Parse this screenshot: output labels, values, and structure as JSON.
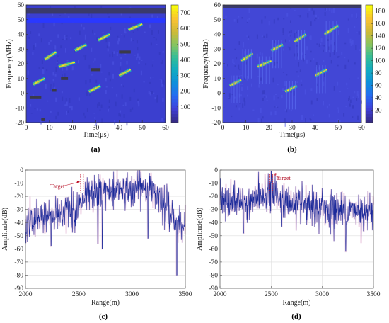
{
  "chart_data": [
    {
      "id": "a",
      "type": "heatmap",
      "panel_label": "(a)",
      "xlabel": "Time(μs)",
      "ylabel": "Frequency(MHz)",
      "xlim": [
        0,
        60
      ],
      "ylim": [
        -20,
        60
      ],
      "xticks": [
        "0",
        "10",
        "20",
        "30",
        "40",
        "50",
        "60"
      ],
      "yticks": [
        "-20",
        "-10",
        "0",
        "10",
        "20",
        "30",
        "40",
        "50",
        "60"
      ],
      "colorbar": {
        "min": 0,
        "max": 750,
        "ticks": [
          "100",
          "200",
          "300",
          "400",
          "500",
          "600",
          "700"
        ],
        "colormap": "parula"
      },
      "background_color": "#3b3fcf",
      "bands": [
        {
          "f_min": 54,
          "f_max": 58,
          "color": "#3a3a6a"
        },
        {
          "f_min": 48,
          "f_max": 51,
          "color": "#2a38ff"
        }
      ],
      "chirps": [
        {
          "t_start": 3,
          "t_end": 8,
          "f_start": 6,
          "f_end": 10
        },
        {
          "t_start": 8,
          "t_end": 13,
          "f_start": 23,
          "f_end": 28
        },
        {
          "t_start": 14,
          "t_end": 21,
          "f_start": 18,
          "f_end": 21
        },
        {
          "t_start": 21,
          "t_end": 26,
          "f_start": 29,
          "f_end": 33
        },
        {
          "t_start": 27,
          "t_end": 32,
          "f_start": 1,
          "f_end": 5
        },
        {
          "t_start": 31,
          "t_end": 36,
          "f_start": 36,
          "f_end": 40
        },
        {
          "t_start": 40,
          "t_end": 45,
          "f_start": 12,
          "f_end": 16
        },
        {
          "t_start": 44,
          "t_end": 50,
          "f_start": 43,
          "f_end": 47
        }
      ],
      "jamming_blocks": [
        {
          "t_start": 1.5,
          "t_end": 6.5,
          "f_start": -4,
          "f_end": -2
        },
        {
          "t_start": 6.5,
          "t_end": 8,
          "f_start": -19,
          "f_end": -17
        },
        {
          "t_start": 11,
          "t_end": 13,
          "f_start": 1,
          "f_end": 3
        },
        {
          "t_start": 15,
          "t_end": 18,
          "f_start": 9,
          "f_end": 11
        },
        {
          "t_start": 28,
          "t_end": 32,
          "f_start": 15,
          "f_end": 17
        },
        {
          "t_start": 40,
          "t_end": 45,
          "f_start": 27,
          "f_end": 29
        }
      ]
    },
    {
      "id": "b",
      "type": "heatmap",
      "panel_label": "(b)",
      "xlabel": "Time(μs)",
      "ylabel": "Frequency(MHz)",
      "xlim": [
        0,
        60
      ],
      "ylim": [
        -20,
        60
      ],
      "xticks": [
        "0",
        "10",
        "20",
        "30",
        "40",
        "50",
        "60"
      ],
      "yticks": [
        "-20",
        "-10",
        "0",
        "10",
        "20",
        "30",
        "40",
        "50",
        "60"
      ],
      "colorbar": {
        "min": 0,
        "max": 190,
        "ticks": [
          "20",
          "40",
          "60",
          "80",
          "100",
          "120",
          "140",
          "160",
          "180"
        ],
        "colormap": "parula"
      },
      "background_color": "#4247d6",
      "bands": [
        {
          "f_min": 58,
          "f_max": 60,
          "color": "#3a3a6a"
        }
      ],
      "chirps": [
        {
          "t_start": 3,
          "t_end": 8,
          "f_start": 5,
          "f_end": 9
        },
        {
          "t_start": 8,
          "t_end": 13,
          "f_start": 22,
          "f_end": 27
        },
        {
          "t_start": 15,
          "t_end": 21,
          "f_start": 18,
          "f_end": 22
        },
        {
          "t_start": 21,
          "t_end": 26,
          "f_start": 29,
          "f_end": 33
        },
        {
          "t_start": 27,
          "t_end": 32,
          "f_start": 1,
          "f_end": 5
        },
        {
          "t_start": 31,
          "t_end": 36,
          "f_start": 35,
          "f_end": 40
        },
        {
          "t_start": 40,
          "t_end": 45,
          "f_start": 12,
          "f_end": 16
        },
        {
          "t_start": 44,
          "t_end": 50,
          "f_start": 40,
          "f_end": 46
        }
      ]
    },
    {
      "id": "c",
      "type": "line",
      "panel_label": "(c)",
      "xlabel": "Range(m)",
      "ylabel": "Amplitude(dB)",
      "xlim": [
        2000,
        3500
      ],
      "ylim": [
        -90,
        0
      ],
      "xticks": [
        "2000",
        "2500",
        "3000",
        "3500"
      ],
      "yticks": [
        "0",
        "-10",
        "-20",
        "-30",
        "-40",
        "-50",
        "-60",
        "-70",
        "-80",
        "-90"
      ],
      "grid": true,
      "line_color": "#1c2a9a",
      "envelope": {
        "x": [
          2000,
          2050,
          2100,
          2150,
          2200,
          2250,
          2300,
          2350,
          2400,
          2450,
          2500,
          2550,
          2600,
          2650,
          2700,
          2750,
          2800,
          2850,
          2900,
          2950,
          3000,
          3050,
          3100,
          3150,
          3200,
          3250,
          3300,
          3350,
          3400,
          3450,
          3500
        ],
        "y": [
          -40,
          -38,
          -36,
          -35,
          -33,
          -32,
          -31,
          -30,
          -28,
          -28,
          -27,
          -22,
          -18,
          -15,
          -14,
          -14,
          -13,
          -12,
          -12,
          -13,
          -12,
          -11,
          -11,
          -12,
          -13,
          -15,
          -20,
          -28,
          -36,
          -40,
          -38
        ]
      },
      "deep_nulls": [
        {
          "x": 2240,
          "y": -58
        },
        {
          "x": 2680,
          "y": -56
        },
        {
          "x": 2720,
          "y": -60
        },
        {
          "x": 3150,
          "y": -52
        },
        {
          "x": 3420,
          "y": -80
        }
      ],
      "annotation": {
        "text": "Target",
        "x": 2520,
        "y": -9
      }
    },
    {
      "id": "d",
      "type": "line",
      "panel_label": "(d)",
      "xlabel": "Range(m)",
      "ylabel": "Amplitude(dB)",
      "xlim": [
        2000,
        3500
      ],
      "ylim": [
        -90,
        0
      ],
      "xticks": [
        "2000",
        "2500",
        "3000",
        "3500"
      ],
      "yticks": [
        "0",
        "-10",
        "-20",
        "-30",
        "-40",
        "-50",
        "-60",
        "-70",
        "-80",
        "-90"
      ],
      "grid": true,
      "line_color": "#1c2a9a",
      "envelope": {
        "x": [
          2000,
          2100,
          2200,
          2300,
          2400,
          2450,
          2500,
          2550,
          2600,
          2700,
          2800,
          2900,
          3000,
          3100,
          3200,
          3300,
          3400,
          3500
        ],
        "y": [
          -23,
          -22,
          -22,
          -21,
          -19,
          -17,
          -14,
          -16,
          -20,
          -24,
          -26,
          -27,
          -27,
          -28,
          -28,
          -29,
          -29,
          -29
        ]
      },
      "peak": {
        "x": 2500,
        "y": -1
      },
      "deep_nulls": [
        {
          "x": 2230,
          "y": -48
        },
        {
          "x": 3230,
          "y": -62
        },
        {
          "x": 3380,
          "y": -55
        }
      ],
      "annotation": {
        "text": "Target",
        "x": 2510,
        "y": -2
      }
    }
  ]
}
